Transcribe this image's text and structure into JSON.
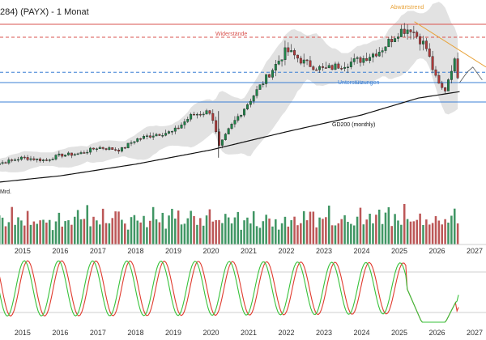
{
  "header": {
    "title": "284) (PAYX) - 1 Monat"
  },
  "chart_data": [
    {
      "type": "candlestick",
      "title": "284) (PAYX) - 1 Monat",
      "x_axis_years": [
        "2015",
        "2016",
        "2017",
        "2018",
        "2019",
        "2020",
        "2021",
        "2022",
        "2023",
        "2024",
        "2025",
        "2026",
        "2027"
      ],
      "annotations": {
        "resistance": "Widerstände",
        "support": "Unterstützungen",
        "downtrend": "Abwärtstrend",
        "ma": "GD200 (monthly)"
      },
      "colors": {
        "up": "#1e8449",
        "down": "#b03a3a",
        "resistance": "#d9534f",
        "support": "#3a7fd4",
        "trend": "#e8a33a",
        "band": "#d8d8d8",
        "ma": "#111111"
      },
      "price_anchors": [
        {
          "t": 2014.0,
          "p": 45
        },
        {
          "t": 2015.0,
          "p": 52
        },
        {
          "t": 2015.6,
          "p": 50
        },
        {
          "t": 2016.0,
          "p": 54
        },
        {
          "t": 2016.5,
          "p": 55
        },
        {
          "t": 2017.0,
          "p": 60
        },
        {
          "t": 2017.6,
          "p": 58
        },
        {
          "t": 2018.0,
          "p": 66
        },
        {
          "t": 2018.5,
          "p": 70
        },
        {
          "t": 2019.0,
          "p": 72
        },
        {
          "t": 2019.5,
          "p": 85
        },
        {
          "t": 2020.0,
          "p": 88
        },
        {
          "t": 2020.22,
          "p": 60
        },
        {
          "t": 2020.5,
          "p": 75
        },
        {
          "t": 2021.0,
          "p": 95
        },
        {
          "t": 2021.5,
          "p": 115
        },
        {
          "t": 2022.0,
          "p": 135
        },
        {
          "t": 2022.5,
          "p": 125
        },
        {
          "t": 2023.0,
          "p": 120
        },
        {
          "t": 2023.5,
          "p": 124
        },
        {
          "t": 2024.0,
          "p": 128
        },
        {
          "t": 2024.5,
          "p": 135
        },
        {
          "t": 2025.0,
          "p": 150
        },
        {
          "t": 2025.3,
          "p": 152
        },
        {
          "t": 2025.7,
          "p": 138
        },
        {
          "t": 2026.0,
          "p": 110
        },
        {
          "t": 2026.2,
          "p": 103
        },
        {
          "t": 2026.45,
          "p": 128
        },
        {
          "t": 2026.6,
          "p": 110
        }
      ],
      "y_range": [
        30,
        165
      ],
      "levels": {
        "resistance": [
          155,
          145
        ],
        "support": [
          118,
          110,
          95
        ]
      },
      "ma200": [
        {
          "t": 2014.0,
          "p": 32
        },
        {
          "t": 2016.0,
          "p": 38
        },
        {
          "t": 2018.0,
          "p": 47
        },
        {
          "t": 2020.0,
          "p": 58
        },
        {
          "t": 2022.0,
          "p": 72
        },
        {
          "t": 2024.0,
          "p": 85
        },
        {
          "t": 2025.5,
          "p": 98
        },
        {
          "t": 2026.6,
          "p": 103
        }
      ],
      "downtrend_line": [
        {
          "t": 2025.4,
          "p": 157
        },
        {
          "t": 2027.3,
          "p": 122
        }
      ]
    },
    {
      "type": "bar",
      "title": "",
      "ylabel": "Mrd.",
      "values_pattern": [
        0.55,
        0.7,
        0.45,
        0.6,
        0.75,
        0.5,
        0.65,
        0.8,
        0.4,
        0.6,
        0.7,
        0.55,
        0.9,
        0.5,
        0.45,
        0.6,
        0.7,
        0.65,
        0.5,
        0.55,
        0.4,
        0.6,
        0.75,
        0.5
      ]
    },
    {
      "type": "line",
      "title": "",
      "series": [
        {
          "color": "#e03b2e"
        },
        {
          "color": "#37c23a"
        }
      ]
    }
  ]
}
